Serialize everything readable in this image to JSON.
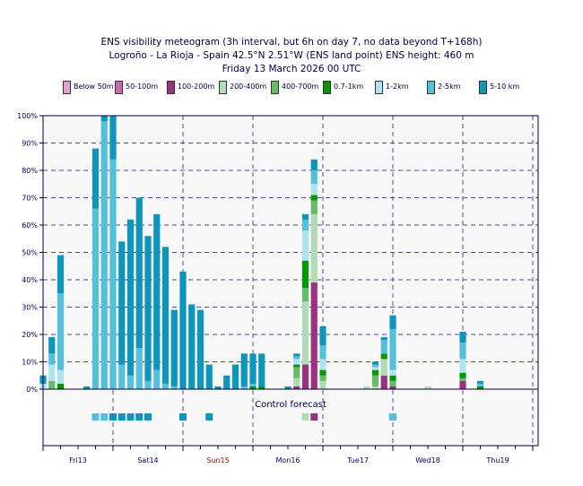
{
  "title": {
    "line1": "ENS visibility meteogram (3h interval, but 6h on day 7, no data beyond T+168h)",
    "line2": "Logroño - La Rioja - Spain 42.5°N 2.51°W (ENS land point) ENS height: 460 m",
    "line3": "Friday 13 March 2026 00 UTC"
  },
  "control_label": "Control forecast",
  "colors": {
    "grid": "#4a4a9a",
    "panel_bg": "#f8f8f8",
    "weekend_day": "#cc0000",
    "weekday": "#000066"
  },
  "chart_data": {
    "type": "bar",
    "stacked": true,
    "ylim": [
      0,
      100
    ],
    "yticks": [
      "0%",
      "10%",
      "20%",
      "30%",
      "40%",
      "50%",
      "60%",
      "70%",
      "80%",
      "90%",
      "100%"
    ],
    "days": [
      "Fri13",
      "Sat14",
      "Sun15",
      "Mon16",
      "Tue17",
      "Wed18",
      "Thu19"
    ],
    "weekend": [
      false,
      false,
      true,
      false,
      false,
      false,
      false
    ],
    "legend": [
      "Below 50m",
      "50-100m",
      "100-200m",
      "200-400m",
      "400-700m",
      "0.7-1km",
      "1-2km",
      "2-5km",
      "5-10 km"
    ],
    "series_colors": [
      "#e8a0d4",
      "#cc66b3",
      "#993380",
      "#b3dbb3",
      "#66bb66",
      "#009900",
      "#aee4ef",
      "#55c0da",
      "#0d95bb"
    ],
    "steps_hours": [
      0,
      3,
      6,
      9,
      12,
      15,
      18,
      21,
      24,
      27,
      30,
      33,
      36,
      39,
      42,
      45,
      48,
      51,
      54,
      57,
      60,
      63,
      66,
      69,
      72,
      75,
      78,
      81,
      84,
      87,
      90,
      93,
      96,
      99,
      102,
      105,
      108,
      111,
      114,
      117,
      120,
      123,
      126,
      129,
      132,
      135,
      138,
      141,
      144,
      150,
      156,
      162,
      168
    ],
    "stacks": [
      [
        0,
        0,
        0,
        0,
        0,
        0,
        2,
        0,
        3
      ],
      [
        0,
        0,
        0,
        0,
        3,
        0,
        6,
        4,
        6
      ],
      [
        0,
        0,
        0,
        0,
        0,
        2,
        5,
        28,
        14
      ],
      [
        0,
        0,
        0,
        0,
        0,
        0,
        0,
        0,
        0
      ],
      [
        0,
        0,
        0,
        0,
        0,
        0,
        0,
        0,
        0
      ],
      [
        0,
        0,
        0,
        0,
        0,
        0,
        0,
        0,
        1
      ],
      [
        0,
        0,
        0,
        0,
        0,
        0,
        0,
        66,
        22
      ],
      [
        0,
        0,
        0,
        0,
        0,
        0,
        0,
        98,
        2
      ],
      [
        0,
        0,
        0,
        0,
        0,
        0,
        0,
        84,
        16
      ],
      [
        0,
        0,
        0,
        0,
        0,
        0,
        0,
        9,
        45
      ],
      [
        0,
        0,
        0,
        0,
        0,
        0,
        0,
        5,
        57
      ],
      [
        0,
        0,
        0,
        0,
        0,
        0,
        0,
        15,
        55
      ],
      [
        0,
        0,
        0,
        0,
        0,
        0,
        0,
        3,
        53
      ],
      [
        0,
        0,
        0,
        0,
        0,
        0,
        0,
        7,
        57
      ],
      [
        0,
        0,
        0,
        0,
        0,
        0,
        0,
        2,
        50
      ],
      [
        0,
        0,
        0,
        0,
        0,
        0,
        0,
        1,
        28
      ],
      [
        0,
        0,
        0,
        0,
        0,
        0,
        0,
        0,
        43
      ],
      [
        0,
        0,
        0,
        0,
        0,
        0,
        0,
        0,
        31
      ],
      [
        0,
        0,
        0,
        0,
        0,
        0,
        0,
        0,
        29
      ],
      [
        0,
        0,
        0,
        0,
        0,
        0,
        0,
        0,
        9
      ],
      [
        0,
        0,
        0,
        0,
        0,
        0,
        0,
        0,
        1
      ],
      [
        0,
        0,
        0,
        0,
        0,
        0,
        0,
        0,
        5
      ],
      [
        0,
        0,
        0,
        0,
        0,
        0,
        0,
        0,
        9
      ],
      [
        0,
        0,
        0,
        0,
        0,
        0,
        0,
        1,
        12
      ],
      [
        0,
        0,
        0,
        0,
        0,
        1,
        0,
        1,
        11
      ],
      [
        0,
        0,
        0,
        0,
        0,
        1,
        0,
        0,
        12
      ],
      [
        0,
        0,
        0,
        0,
        0,
        0,
        0,
        0,
        0
      ],
      [
        0,
        0,
        0,
        0,
        0,
        0,
        0,
        0,
        0
      ],
      [
        0,
        0,
        0,
        0,
        0,
        0,
        0,
        0,
        1
      ],
      [
        0,
        0,
        1,
        3,
        4,
        1,
        2,
        1,
        1
      ],
      [
        0,
        0,
        9,
        23,
        5,
        10,
        11,
        4,
        2
      ],
      [
        0,
        0,
        39,
        25,
        5,
        2,
        4,
        5,
        4
      ],
      [
        0,
        0,
        0,
        3,
        2,
        2,
        4,
        5,
        7
      ],
      [
        0,
        0,
        0,
        0,
        0,
        0,
        0,
        0,
        0
      ],
      [
        0,
        0,
        0,
        0,
        0,
        0,
        0,
        0,
        0
      ],
      [
        0,
        0,
        0,
        0,
        0,
        0,
        0,
        0,
        0
      ],
      [
        0,
        0,
        0,
        0,
        0,
        0,
        0,
        0,
        0
      ],
      [
        0,
        0,
        0,
        1,
        0,
        0,
        0,
        0,
        0
      ],
      [
        0,
        0,
        0,
        1,
        4,
        2,
        1,
        1,
        1
      ],
      [
        0,
        0,
        5,
        6,
        0,
        2,
        0,
        5,
        1
      ],
      [
        0,
        0,
        1,
        0,
        2,
        2,
        2,
        15,
        5
      ],
      [
        0,
        0,
        0,
        0,
        0,
        0,
        0,
        0,
        0
      ],
      [
        0,
        0,
        0,
        0,
        0,
        0,
        0,
        0,
        0
      ],
      [
        0,
        0,
        0,
        0,
        0,
        0,
        0,
        0,
        0
      ],
      [
        0,
        0,
        0,
        1,
        0,
        0,
        0,
        0,
        0
      ],
      [
        0,
        0,
        0,
        0,
        0,
        0,
        0,
        0,
        0
      ],
      [
        0,
        0,
        0,
        0,
        0,
        0,
        0,
        0,
        0
      ],
      [
        0,
        0,
        0,
        0,
        0,
        0,
        0,
        0,
        0
      ],
      [
        0,
        0,
        3,
        0,
        1,
        2,
        5,
        6,
        4
      ],
      [
        0,
        0,
        0,
        0,
        0,
        1,
        0,
        1,
        1
      ],
      [
        0,
        0,
        0,
        0,
        0,
        0,
        0,
        0,
        0
      ],
      [
        0,
        0,
        0,
        0,
        0,
        0,
        0,
        0,
        0
      ],
      [
        0,
        0,
        0,
        0,
        0,
        0,
        0,
        0,
        0
      ]
    ],
    "control": [
      null,
      null,
      null,
      null,
      null,
      null,
      7,
      7,
      8,
      8,
      8,
      8,
      8,
      null,
      null,
      null,
      8,
      null,
      null,
      8,
      null,
      null,
      null,
      null,
      null,
      null,
      null,
      null,
      null,
      null,
      3,
      2,
      null,
      null,
      null,
      null,
      null,
      null,
      null,
      null,
      7,
      null,
      null,
      null,
      null,
      null,
      null,
      null,
      null,
      null,
      null,
      null,
      null
    ]
  }
}
